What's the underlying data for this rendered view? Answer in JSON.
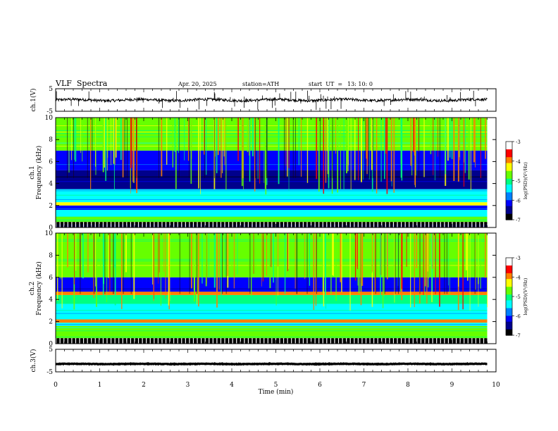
{
  "header": {
    "title": "VLF  Spectra",
    "date": "Apr. 20, 2025",
    "station": "station=ATH",
    "start_label": "start  UT  =",
    "start_time": "13: 10: 0"
  },
  "chart_data": [
    {
      "type": "line",
      "name": "ch1-waveform",
      "ylabel": "ch.1(V)",
      "ylim": [
        -5,
        5
      ],
      "y_ticks": [
        "5",
        "-5"
      ],
      "xlim": [
        0,
        10
      ],
      "data_extent_min": 9.8,
      "baseline_v": 0.0,
      "noise_amplitude_v": 1.2,
      "spike_amplitude_v": 4.5
    },
    {
      "type": "heatmap",
      "name": "ch1-spectrogram",
      "ylabel": "ch.1\nFrequency (kHz)",
      "ylim": [
        0,
        10
      ],
      "y_ticks": [
        "0",
        "2",
        "4",
        "6",
        "8",
        "10"
      ],
      "xlim": [
        0,
        10
      ],
      "data_extent_min": 9.8,
      "bands_khz": [
        {
          "range": [
            0.0,
            0.5
          ],
          "level": "saturated"
        },
        {
          "range": [
            0.5,
            1.0
          ],
          "level": "green"
        },
        {
          "range": [
            1.0,
            1.6
          ],
          "level": "cyan"
        },
        {
          "range": [
            1.6,
            2.0
          ],
          "level": "blue"
        },
        {
          "range": [
            2.0,
            2.3
          ],
          "level": "yellow"
        },
        {
          "range": [
            2.3,
            3.5
          ],
          "level": "cyan"
        },
        {
          "range": [
            3.5,
            5.2
          ],
          "level": "deep-blue"
        },
        {
          "range": [
            5.2,
            7.0
          ],
          "level": "blue"
        },
        {
          "range": [
            7.0,
            10.0
          ],
          "level": "green"
        }
      ],
      "colorbar": {
        "label": "log(PSD)(V²/Hz)",
        "ticks": [
          "-3",
          "-4",
          "-5",
          "-6",
          "-7"
        ],
        "range": [
          -7,
          -3
        ]
      }
    },
    {
      "type": "heatmap",
      "name": "ch2-spectrogram",
      "ylabel": "ch.2\nFrequency (kHz)",
      "ylim": [
        0,
        10
      ],
      "y_ticks": [
        "0",
        "2",
        "4",
        "6",
        "8",
        "10"
      ],
      "xlim": [
        0,
        10
      ],
      "data_extent_min": 9.8,
      "bands_khz": [
        {
          "range": [
            0.0,
            0.5
          ],
          "level": "saturated"
        },
        {
          "range": [
            0.5,
            1.6
          ],
          "level": "green"
        },
        {
          "range": [
            1.6,
            1.9
          ],
          "level": "cyan"
        },
        {
          "range": [
            1.9,
            2.2
          ],
          "level": "orange"
        },
        {
          "range": [
            2.2,
            3.6
          ],
          "level": "cyan"
        },
        {
          "range": [
            3.6,
            4.4
          ],
          "level": "cyan-green"
        },
        {
          "range": [
            4.4,
            4.7
          ],
          "level": "orange"
        },
        {
          "range": [
            4.7,
            6.0
          ],
          "level": "blue"
        },
        {
          "range": [
            6.0,
            10.0
          ],
          "level": "green"
        }
      ],
      "colorbar": {
        "label": "log(PSD)(V²/Hz)",
        "ticks": [
          "-3",
          "-4",
          "-5",
          "-6",
          "-7"
        ],
        "range": [
          -7,
          -3
        ]
      }
    },
    {
      "type": "line",
      "name": "ch3-waveform",
      "ylabel": "ch.3(V)",
      "ylim": [
        -5,
        5
      ],
      "y_ticks": [
        "5",
        "-5"
      ],
      "xlim": [
        0,
        10
      ],
      "data_extent_min": 9.8,
      "baseline_v": -1.5,
      "noise_amplitude_v": 0.25
    }
  ],
  "x_axis": {
    "label": "Time  (min)",
    "ticks": [
      "0",
      "1",
      "2",
      "3",
      "4",
      "5",
      "6",
      "7",
      "8",
      "9",
      "10"
    ]
  },
  "colormap": [
    "#000000",
    "#00008c",
    "#0000ff",
    "#0080ff",
    "#00ffff",
    "#00ff80",
    "#66ff00",
    "#ffff00",
    "#ff8000",
    "#ff0000",
    "#ffffff"
  ]
}
